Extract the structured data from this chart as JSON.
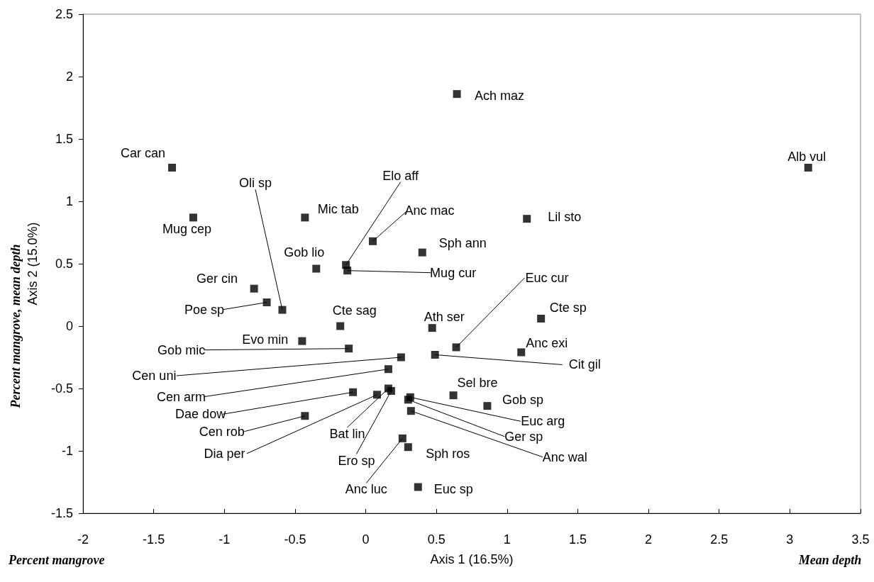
{
  "chart_data": {
    "type": "scatter",
    "xlabel": "Axis 1 (16.5%)",
    "ylabel": "Axis 2 (15.0%)",
    "x": [
      0.645,
      3.13,
      -1.37,
      -1.22,
      -0.43,
      1.14,
      0.05,
      0.4,
      -0.35,
      -0.14,
      -0.13,
      -0.79,
      -0.7,
      -0.59,
      -0.18,
      0.47,
      1.24,
      0.64,
      1.1,
      -0.45,
      -0.12,
      0.25,
      0.49,
      0.16,
      0.62,
      0.86,
      -0.09,
      0.16,
      0.18,
      0.08,
      0.315,
      0.3,
      0.32,
      -0.43,
      0.26,
      0.3,
      0.37
    ],
    "values": [
      1.86,
      1.27,
      1.27,
      0.87,
      0.87,
      0.86,
      0.68,
      0.59,
      0.46,
      0.49,
      0.445,
      0.3,
      0.19,
      0.13,
      0.0,
      -0.015,
      0.06,
      -0.17,
      -0.21,
      -0.12,
      -0.18,
      -0.25,
      -0.23,
      -0.345,
      -0.555,
      -0.64,
      -0.53,
      -0.5,
      -0.52,
      -0.55,
      -0.57,
      -0.59,
      -0.68,
      -0.72,
      -0.9,
      -0.97,
      -1.29
    ],
    "color": "#000000",
    "marker": "square",
    "xlim": [
      -2,
      3.5
    ],
    "xticks": [
      -2,
      -1.5,
      -1,
      -0.5,
      0,
      0.5,
      1,
      1.5,
      2,
      2.5,
      3,
      3.5
    ],
    "ylim": [
      -1.5,
      2.5
    ],
    "yticks": [
      -1.5,
      -1,
      -0.5,
      0,
      0.5,
      1,
      1.5,
      2,
      2.5
    ],
    "grid": false,
    "annotations": [
      {
        "text": "Ach maz",
        "x": 0.645,
        "y": 1.86
      },
      {
        "text": "Alb vul",
        "x": 3.13,
        "y": 1.27
      },
      {
        "text": "Car can",
        "x": -1.37,
        "y": 1.27
      },
      {
        "text": "Mug cep",
        "x": -1.22,
        "y": 0.87
      },
      {
        "text": "Mic tab",
        "x": -0.43,
        "y": 0.87
      },
      {
        "text": "Lil sto",
        "x": 1.14,
        "y": 0.86
      },
      {
        "text": "Anc mac",
        "x": 0.05,
        "y": 0.68
      },
      {
        "text": "Sph ann",
        "x": 0.4,
        "y": 0.59
      },
      {
        "text": "Gob lio",
        "x": -0.35,
        "y": 0.46
      },
      {
        "text": "Elo aff",
        "x": -0.14,
        "y": 0.49
      },
      {
        "text": "Mug cur",
        "x": -0.13,
        "y": 0.445
      },
      {
        "text": "Ger cin",
        "x": -0.79,
        "y": 0.3
      },
      {
        "text": "Poe sp",
        "x": -0.7,
        "y": 0.19
      },
      {
        "text": "Oli sp",
        "x": -0.59,
        "y": 0.13
      },
      {
        "text": "Cte sag",
        "x": -0.18,
        "y": 0.0
      },
      {
        "text": "Ath ser",
        "x": 0.47,
        "y": -0.015
      },
      {
        "text": "Cte sp",
        "x": 1.24,
        "y": 0.06
      },
      {
        "text": "Euc cur",
        "x": 0.64,
        "y": -0.17
      },
      {
        "text": "Anc exi",
        "x": 1.1,
        "y": -0.21
      },
      {
        "text": "Evo min",
        "x": -0.45,
        "y": -0.12
      },
      {
        "text": "Gob mic",
        "x": -0.12,
        "y": -0.18
      },
      {
        "text": "Cen uni",
        "x": 0.25,
        "y": -0.25
      },
      {
        "text": "Cit gil",
        "x": 0.49,
        "y": -0.23
      },
      {
        "text": "Cen arm",
        "x": 0.16,
        "y": -0.345
      },
      {
        "text": "Sel bre",
        "x": 0.62,
        "y": -0.555
      },
      {
        "text": "Gob sp",
        "x": 0.86,
        "y": -0.64
      },
      {
        "text": "Dae dow",
        "x": -0.09,
        "y": -0.53
      },
      {
        "text": "Bat lin",
        "x": 0.16,
        "y": -0.5
      },
      {
        "text": "Ero sp",
        "x": 0.18,
        "y": -0.52
      },
      {
        "text": "Dia per",
        "x": 0.08,
        "y": -0.55
      },
      {
        "text": "Euc arg",
        "x": 0.315,
        "y": -0.57
      },
      {
        "text": "Ger sp",
        "x": 0.3,
        "y": -0.59
      },
      {
        "text": "Anc wal",
        "x": 0.32,
        "y": -0.68
      },
      {
        "text": "Cen rob",
        "x": -0.43,
        "y": -0.72
      },
      {
        "text": "Anc luc",
        "x": 0.26,
        "y": -0.9
      },
      {
        "text": "Sph ros",
        "x": 0.3,
        "y": -0.97
      },
      {
        "text": "Euc sp",
        "x": 0.37,
        "y": -1.29
      },
      "Percent mangrove",
      "Mean depth",
      "Percent mangrove, mean depth"
    ]
  }
}
